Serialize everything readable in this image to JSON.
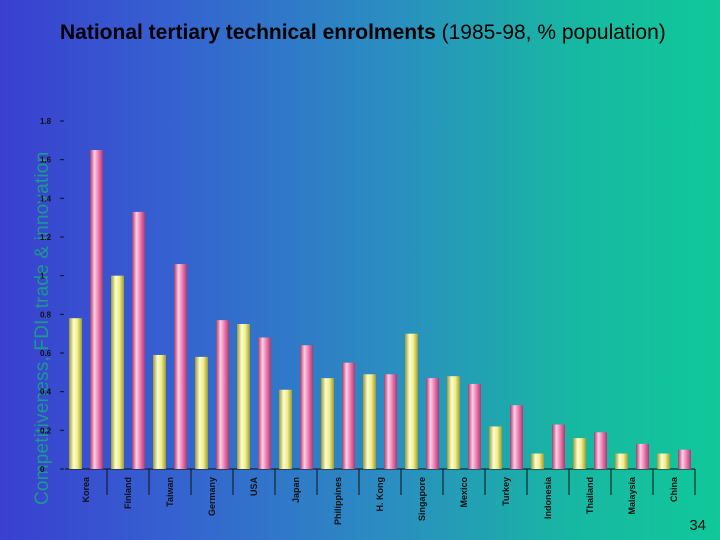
{
  "side_title": "Competitiveness, FDI, trade & innovation",
  "header": {
    "title_bold": "National tertiary technical enrolments",
    "title_rest": " (1985-98, % population)"
  },
  "page_number": "34",
  "colors": {
    "series_a": "#f0ee8a",
    "series_b": "#f07ab0"
  },
  "chart_data": {
    "type": "bar",
    "categories": [
      "Korea",
      "Finland",
      "Taiwan",
      "Germany",
      "USA",
      "Japan",
      "Philippines",
      "H. Kong",
      "Singapore",
      "Mexico",
      "Turkey",
      "Indonesia",
      "Thailand",
      "Malaysia",
      "China"
    ],
    "series": [
      {
        "values": [
          0.78,
          1.0,
          0.59,
          0.58,
          0.75,
          0.41,
          0.47,
          0.49,
          0.7,
          0.48,
          0.22,
          0.08,
          0.16,
          0.08,
          0.08
        ]
      },
      {
        "values": [
          1.65,
          1.33,
          1.06,
          0.77,
          0.68,
          0.64,
          0.55,
          0.49,
          0.47,
          0.44,
          0.33,
          0.23,
          0.19,
          0.13,
          0.1
        ]
      }
    ],
    "yticks": [
      "0",
      "0.2",
      "0.4",
      "0.6",
      "0.8",
      "1",
      "1.2",
      "1.4",
      "1.6",
      "1.8"
    ],
    "ylim": [
      0,
      1.8
    ],
    "grid": false
  }
}
